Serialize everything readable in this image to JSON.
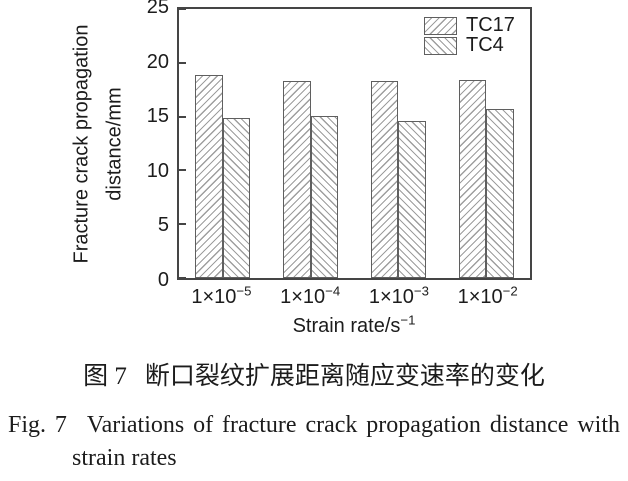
{
  "chart_data": {
    "type": "bar",
    "title": "",
    "categories": [
      {
        "base": "1×10",
        "exponent": "−5"
      },
      {
        "base": "1×10",
        "exponent": "−4"
      },
      {
        "base": "1×10",
        "exponent": "−3"
      },
      {
        "base": "1×10",
        "exponent": "−2"
      }
    ],
    "series": [
      {
        "name": "TC17",
        "values": [
          18.9,
          18.3,
          18.3,
          18.4
        ],
        "hatch": "forward-diagonal"
      },
      {
        "name": "TC4",
        "values": [
          14.9,
          15.1,
          14.6,
          15.7
        ],
        "hatch": "backward-diagonal"
      }
    ],
    "xlabel": {
      "base": "Strain rate/s",
      "exponent": "−1"
    },
    "ylabel": "Fracture crack propagation distance/mm",
    "ylabel_lines": [
      "Fracture crack propagation",
      "distance/mm"
    ],
    "ylim": [
      0,
      25
    ],
    "yticks": [
      0,
      5,
      10,
      15,
      20,
      25
    ],
    "grid": false,
    "legend_position": "top-right",
    "colors": {
      "bar_fill": "#ffffff",
      "bar_edge": "#5f5f5f",
      "hatch_line": "#9e9e9e",
      "axis": "#454545",
      "text": "#1c1c1c"
    }
  },
  "caption_zh": {
    "label": "图 7",
    "text": "断口裂纹扩展距离随应变速率的变化"
  },
  "caption_en": {
    "label": "Fig. 7",
    "line1": "Variations of fracture crack propagation distance with",
    "line2": "strain rates"
  }
}
